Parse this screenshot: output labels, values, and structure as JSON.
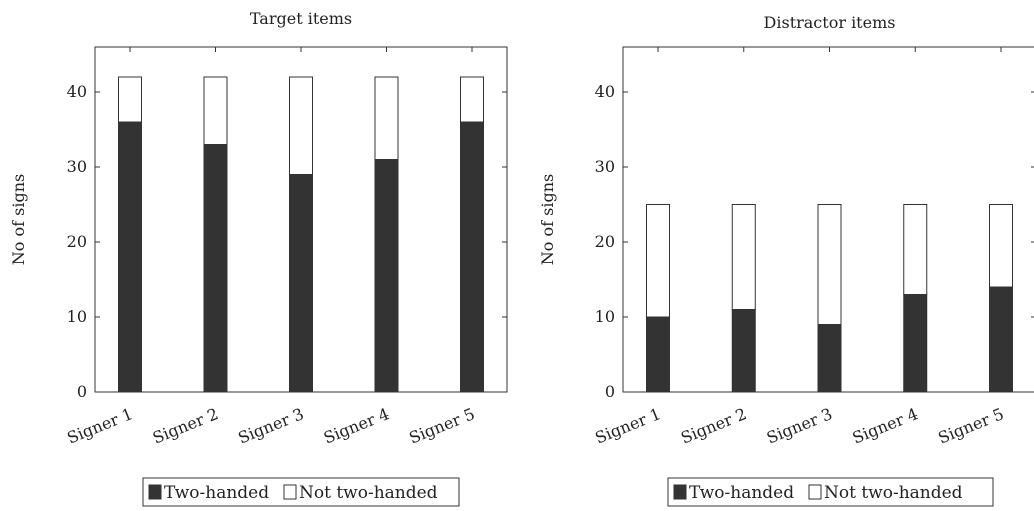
{
  "chart_data": [
    {
      "type": "bar",
      "stacked": true,
      "title": "Target items",
      "xlabel": "",
      "ylabel": "No of signs",
      "categories": [
        "Signer 1",
        "Signer 2",
        "Signer 3",
        "Signer 4",
        "Signer 5"
      ],
      "series": [
        {
          "name": "Two-handed",
          "values": [
            36,
            33,
            29,
            31,
            36
          ],
          "color": "#333333"
        },
        {
          "name": "Not two-handed",
          "values": [
            6,
            9,
            13,
            11,
            6
          ],
          "color": "#ffffff"
        }
      ],
      "ylim": [
        0,
        46
      ],
      "yticks": [
        0,
        10,
        20,
        30,
        40
      ],
      "grid": false,
      "legend": "bottom"
    },
    {
      "type": "bar",
      "stacked": true,
      "title": "Distractor items",
      "xlabel": "",
      "ylabel": "No of signs",
      "categories": [
        "Signer 1",
        "Signer 2",
        "Signer 3",
        "Signer 4",
        "Signer 5"
      ],
      "series": [
        {
          "name": "Two-handed",
          "values": [
            10,
            11,
            9,
            13,
            14
          ],
          "color": "#333333"
        },
        {
          "name": "Not two-handed",
          "values": [
            15,
            14,
            16,
            12,
            11
          ],
          "color": "#ffffff"
        }
      ],
      "ylim": [
        0,
        46
      ],
      "yticks": [
        0,
        10,
        20,
        30,
        40
      ],
      "grid": false,
      "legend": "bottom"
    }
  ]
}
